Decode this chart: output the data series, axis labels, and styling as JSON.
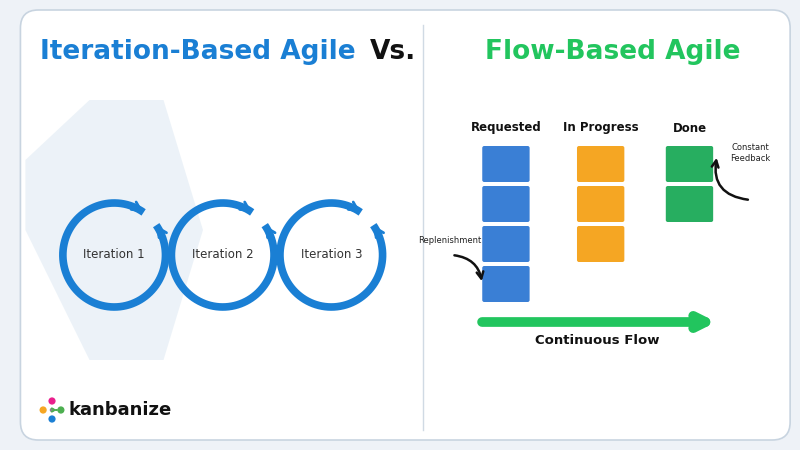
{
  "bg_color": "#eef2f7",
  "card_color": "#ffffff",
  "title_left": "Iteration-Based Agile",
  "title_vs": "Vs.",
  "title_right": "Flow-Based Agile",
  "title_left_color": "#1a7fd4",
  "title_vs_color": "#111111",
  "title_right_color": "#22c55e",
  "circle_color": "#1a7fd4",
  "iteration_labels": [
    "Iteration 1",
    "Iteration 2",
    "Iteration 3"
  ],
  "col_headers": [
    "Requested",
    "In Progress",
    "Done"
  ],
  "col_header_color": "#111111",
  "card_blue": "#3a7fd5",
  "card_orange": "#f5a623",
  "card_green": "#27ae60",
  "continuous_flow_color": "#22c55e",
  "continuous_flow_label": "Continuous Flow",
  "constant_feedback_label": "Constant\nFeedback",
  "replenishment_label": "Replenishment",
  "arrow_color": "#111111",
  "logo_text": "kanbanize",
  "logo_text_color": "#111111",
  "watermark_color": "#d6e4f0"
}
